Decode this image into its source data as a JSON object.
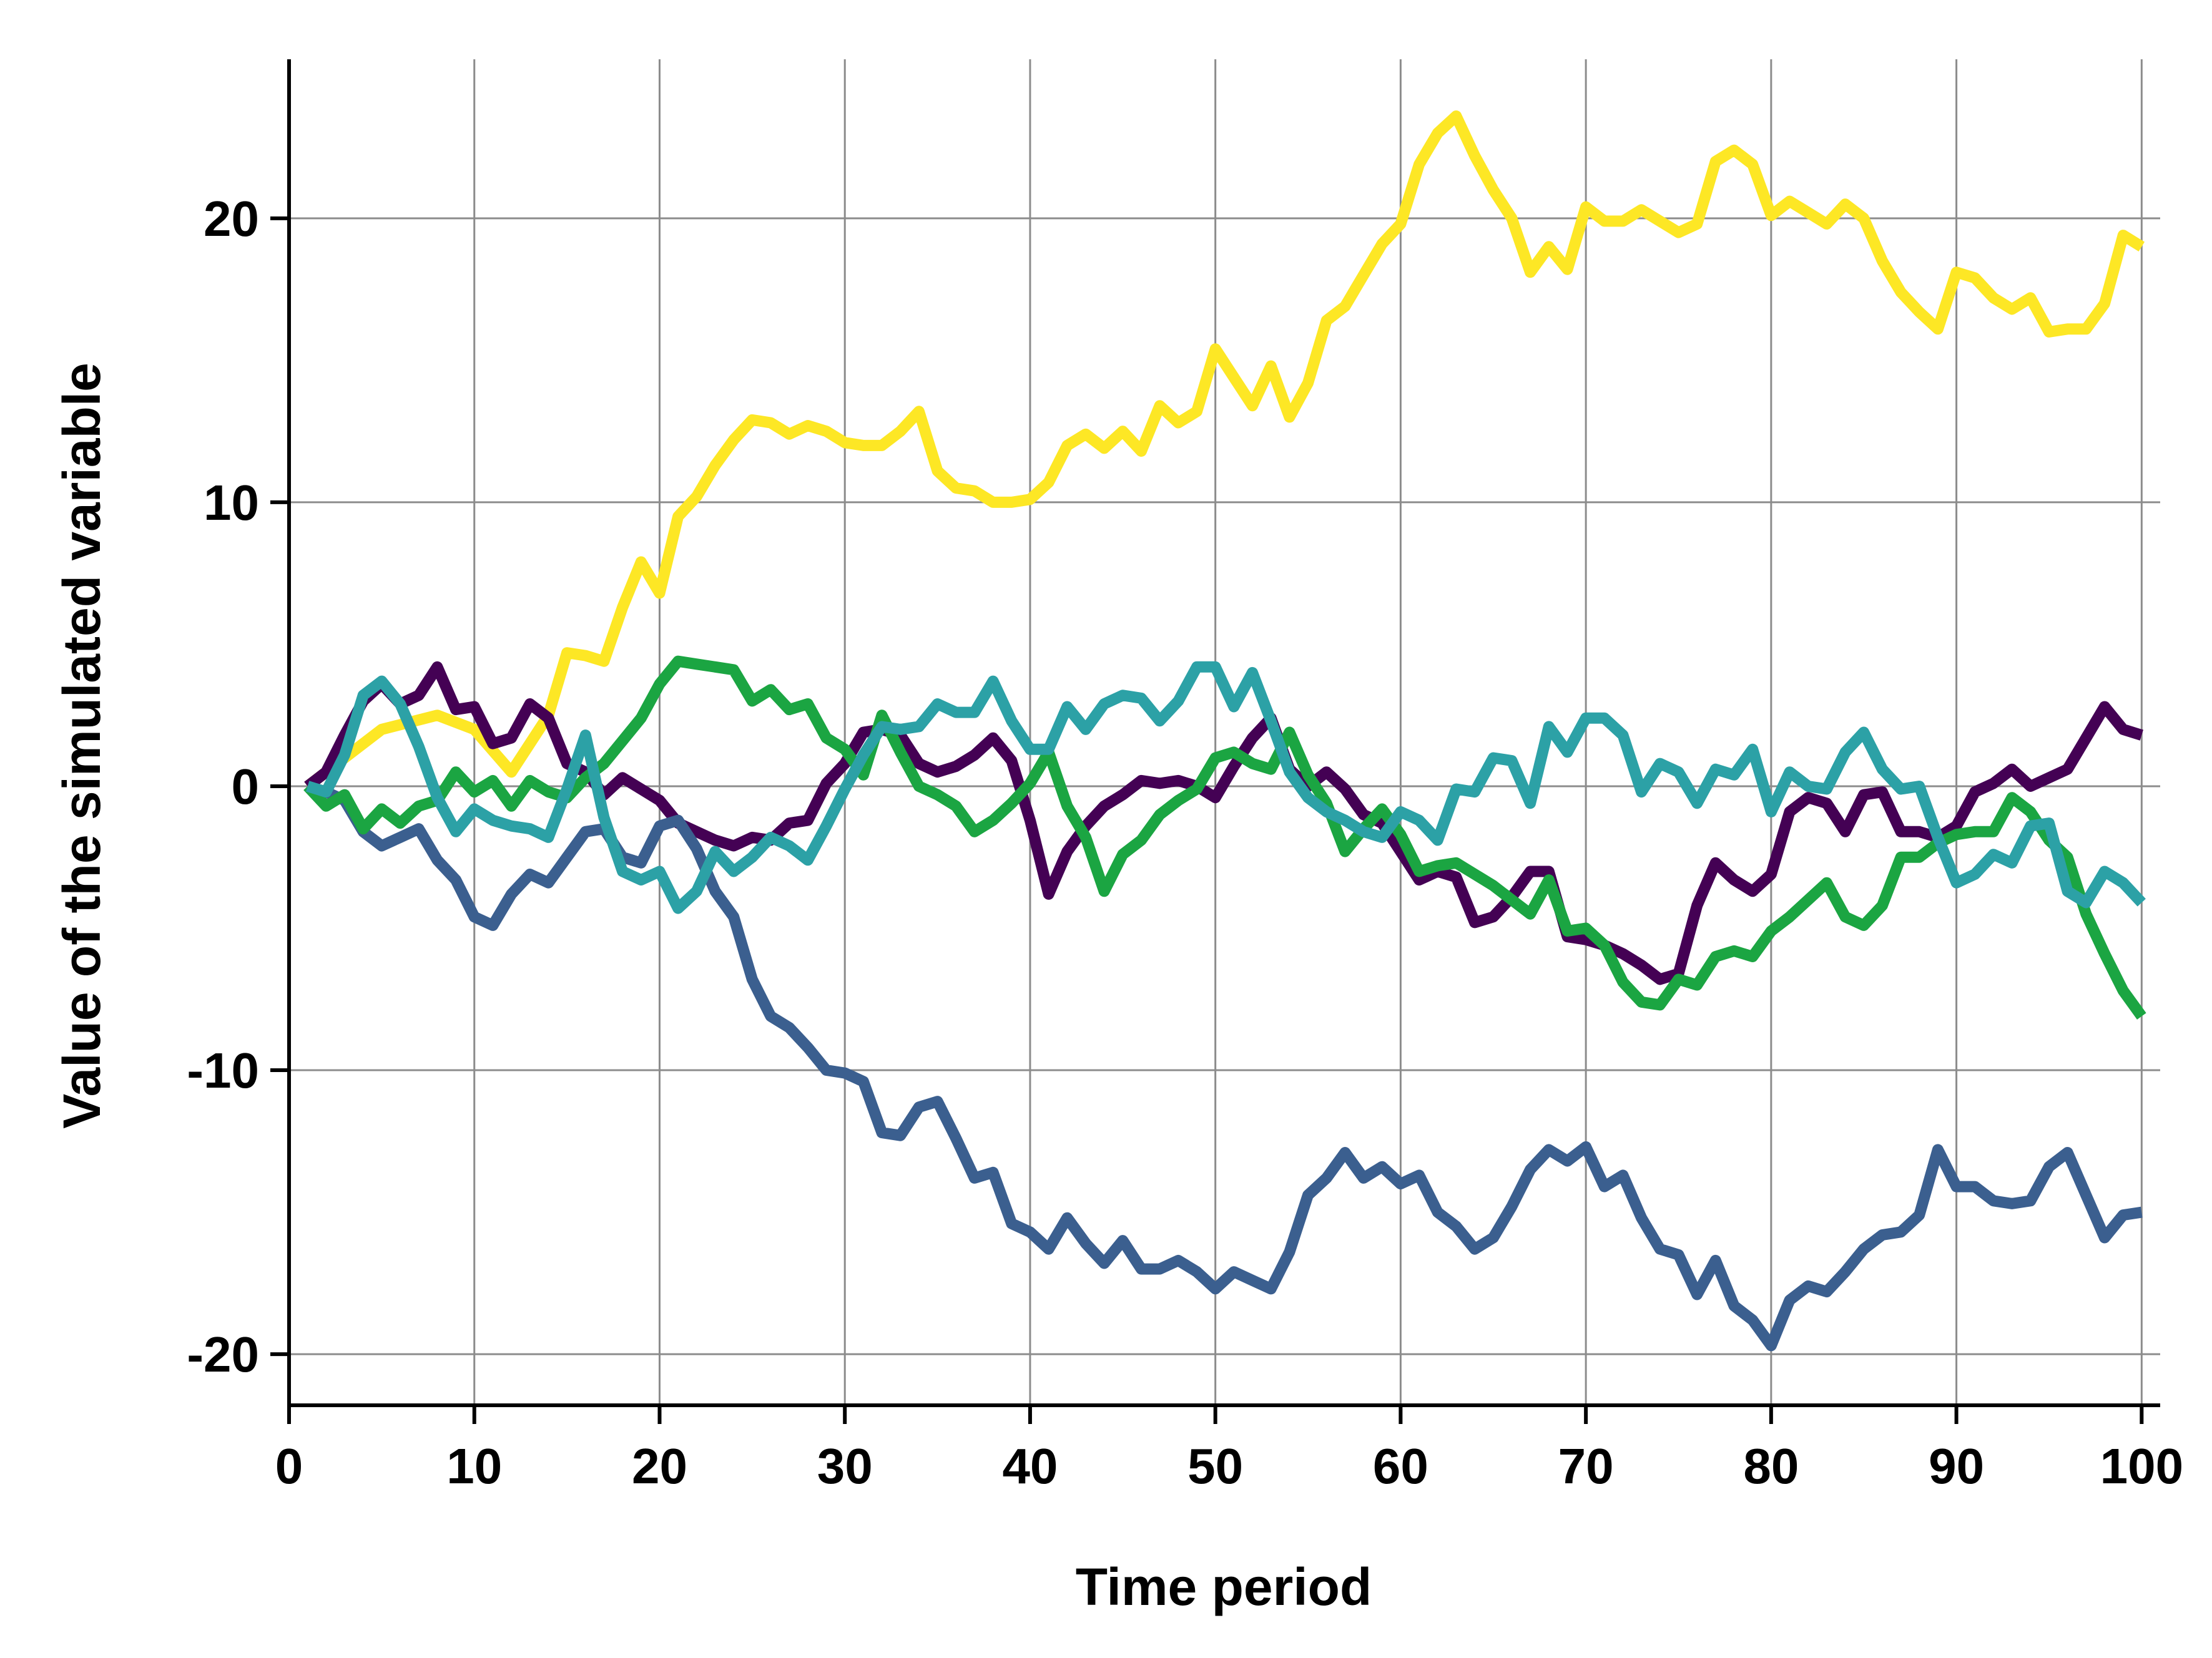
{
  "chart_data": {
    "type": "line",
    "title": "",
    "xlabel": "Time period",
    "ylabel": "Value of the simulated variable",
    "xlim": [
      0,
      101
    ],
    "ylim": [
      -21.8,
      25.6
    ],
    "xticks": [
      0,
      10,
      20,
      30,
      40,
      50,
      60,
      70,
      80,
      90,
      100
    ],
    "yticks": [
      -20,
      -10,
      0,
      10,
      20
    ],
    "grid": true,
    "legend": "none",
    "series": [
      {
        "color": "#fde725",
        "x": [
          1,
          5,
          8,
          10,
          12,
          14,
          15,
          16,
          17,
          18,
          19,
          20,
          21,
          22,
          23,
          24,
          25,
          26,
          27,
          28,
          29,
          30,
          31,
          32,
          33,
          34,
          35,
          36,
          37,
          38,
          39,
          40,
          41,
          42,
          43,
          44,
          45,
          46,
          47,
          48,
          49,
          50,
          51,
          52,
          53,
          54,
          55,
          56,
          57,
          58,
          59,
          60,
          61,
          62,
          63,
          64,
          65,
          66,
          67,
          68,
          69,
          70,
          71,
          72,
          73,
          74,
          75,
          76,
          77,
          78,
          79,
          80,
          81,
          82,
          83,
          84,
          85,
          86,
          87,
          88,
          89,
          90,
          91,
          92,
          93,
          94,
          95,
          96,
          97,
          98,
          99,
          100
        ],
        "y": [
          0,
          2,
          2.5,
          2,
          0.5,
          2.5,
          4.7,
          4.6,
          4.4,
          6.3,
          7.9,
          6.8,
          9.5,
          10.2,
          11.3,
          12.2,
          12.9,
          12.8,
          12.4,
          12.7,
          12.5,
          12.1,
          12,
          12,
          12.5,
          13.2,
          11.1,
          10.5,
          10.4,
          10,
          10,
          10.1,
          10.7,
          12,
          12.4,
          11.9,
          12.5,
          11.8,
          13.4,
          12.8,
          13.2,
          15.4,
          14.4,
          13.4,
          14.8,
          13,
          14.2,
          16.4,
          16.9,
          18,
          19.1,
          19.8,
          21.9,
          23,
          23.6,
          22.2,
          21,
          20,
          18.1,
          19,
          18.2,
          20.4,
          19.9,
          19.9,
          20.3,
          19.9,
          19.5,
          19.8,
          22,
          22.4,
          21.9,
          20.1,
          20.6,
          20.2,
          19.8,
          20.5,
          20,
          18.5,
          17.4,
          16.7,
          16.1,
          18.1,
          17.9,
          17.2,
          16.8,
          17.2,
          16,
          16.1,
          16.1,
          17,
          19.4,
          19
        ]
      },
      {
        "color": "#440154",
        "x": [
          1,
          2,
          3,
          4,
          5,
          6,
          7,
          8,
          9,
          10,
          11,
          12,
          13,
          14,
          15,
          16,
          17,
          18,
          19,
          20,
          21,
          22,
          23,
          24,
          25,
          26,
          27,
          28,
          29,
          30,
          31,
          32,
          33,
          34,
          35,
          36,
          37,
          38,
          39,
          40,
          41,
          42,
          43,
          44,
          45,
          46,
          47,
          48,
          49,
          50,
          51,
          52,
          53,
          54,
          55,
          56,
          57,
          58,
          59,
          60,
          61,
          62,
          63,
          64,
          65,
          66,
          67,
          68,
          69,
          70,
          71,
          72,
          73,
          74,
          75,
          76,
          77,
          78,
          79,
          80,
          81,
          82,
          83,
          84,
          85,
          86,
          87,
          88,
          89,
          90,
          91,
          92,
          93,
          94,
          95,
          96,
          97,
          98,
          99,
          100
        ],
        "y": [
          0,
          0.5,
          1.8,
          3,
          3.6,
          2.9,
          3.2,
          4.2,
          2.7,
          2.8,
          1.5,
          1.7,
          2.9,
          2.4,
          0.8,
          0.5,
          -0.3,
          0.3,
          -0.1,
          -0.5,
          -1.3,
          -1.6,
          -1.9,
          -2.1,
          -1.8,
          -1.9,
          -1.3,
          -1.2,
          0.1,
          0.8,
          1.9,
          2,
          1.8,
          0.8,
          0.5,
          0.7,
          1.1,
          1.7,
          0.9,
          -1.2,
          -3.8,
          -2.3,
          -1.4,
          -0.7,
          -0.3,
          0.2,
          0.1,
          0.2,
          0,
          -0.4,
          0.7,
          1.7,
          2.4,
          0.6,
          0,
          0.5,
          -0.1,
          -1,
          -1.3,
          -2.3,
          -3.3,
          -3,
          -3.2,
          -4.8,
          -4.6,
          -3.9,
          -3,
          -3,
          -5.3,
          -5.4,
          -5.6,
          -5.9,
          -6.3,
          -6.8,
          -6.6,
          -4.2,
          -2.7,
          -3.3,
          -3.7,
          -3.1,
          -0.9,
          -0.4,
          -0.6,
          -1.6,
          -0.3,
          -0.2,
          -1.6,
          -1.6,
          -1.8,
          -1.4,
          -0.2,
          0.1,
          0.6,
          0,
          0.3,
          0.6,
          1.7,
          2.8,
          2,
          1.8
        ]
      },
      {
        "color": "#3b5f8f",
        "x": [
          1,
          2,
          3,
          4,
          5,
          6,
          7,
          8,
          9,
          10,
          11,
          12,
          13,
          14,
          15,
          16,
          17,
          18,
          19,
          20,
          21,
          22,
          23,
          24,
          25,
          26,
          27,
          28,
          29,
          30,
          31,
          32,
          33,
          34,
          35,
          36,
          37,
          38,
          39,
          40,
          41,
          42,
          43,
          44,
          45,
          46,
          47,
          48,
          49,
          50,
          51,
          52,
          53,
          54,
          55,
          56,
          57,
          58,
          59,
          60,
          61,
          62,
          63,
          64,
          65,
          66,
          67,
          68,
          69,
          70,
          71,
          72,
          73,
          74,
          75,
          76,
          77,
          78,
          79,
          80,
          81,
          82,
          83,
          84,
          85,
          86,
          87,
          88,
          89,
          90,
          91,
          92,
          93,
          94,
          95,
          96,
          97,
          98,
          99,
          100
        ],
        "y": [
          0,
          -0.2,
          -0.5,
          -1.6,
          -2.1,
          -1.8,
          -1.5,
          -2.6,
          -3.3,
          -4.6,
          -4.9,
          -3.8,
          -3.1,
          -3.4,
          -2.5,
          -1.6,
          -1.5,
          -2.5,
          -2.7,
          -1.4,
          -1.2,
          -2.2,
          -3.7,
          -4.6,
          -6.8,
          -8.1,
          -8.5,
          -9.2,
          -10,
          -10.1,
          -10.4,
          -12.2,
          -12.3,
          -11.3,
          -11.1,
          -12.4,
          -13.8,
          -13.6,
          -15.4,
          -15.7,
          -16.3,
          -15.2,
          -16.1,
          -16.8,
          -16,
          -17,
          -17,
          -16.7,
          -17.1,
          -17.7,
          -17.1,
          -17.4,
          -17.7,
          -16.4,
          -14.4,
          -13.8,
          -12.9,
          -13.8,
          -13.4,
          -14,
          -13.7,
          -15,
          -15.5,
          -16.3,
          -15.9,
          -14.8,
          -13.5,
          -12.8,
          -13.2,
          -12.7,
          -14.1,
          -13.7,
          -15.2,
          -16.3,
          -16.5,
          -17.9,
          -16.7,
          -18.3,
          -18.8,
          -19.7,
          -18.1,
          -17.6,
          -17.8,
          -17.1,
          -16.3,
          -15.8,
          -15.7,
          -15.1,
          -12.8,
          -14.1,
          -14.1,
          -14.6,
          -14.7,
          -14.6,
          -13.4,
          -12.9,
          -14.4,
          -15.9,
          -15.1,
          -15
        ]
      },
      {
        "color": "#1ba542",
        "x": [
          1,
          2,
          3,
          4,
          5,
          6,
          7,
          8,
          9,
          10,
          11,
          12,
          13,
          14,
          15,
          16,
          17,
          18,
          19,
          20,
          21,
          22,
          23,
          24,
          25,
          26,
          27,
          28,
          29,
          30,
          31,
          32,
          33,
          34,
          35,
          36,
          37,
          38,
          39,
          40,
          41,
          42,
          43,
          44,
          45,
          46,
          47,
          48,
          49,
          50,
          51,
          52,
          53,
          54,
          55,
          56,
          57,
          58,
          59,
          60,
          61,
          62,
          63,
          64,
          65,
          66,
          67,
          68,
          69,
          70,
          71,
          72,
          73,
          74,
          75,
          76,
          77,
          78,
          79,
          80,
          81,
          82,
          83,
          84,
          85,
          86,
          87,
          88,
          89,
          90,
          91,
          92,
          93,
          94,
          95,
          96,
          97,
          98,
          99,
          100
        ],
        "y": [
          0,
          -0.7,
          -0.3,
          -1.5,
          -0.8,
          -1.3,
          -0.7,
          -0.5,
          0.5,
          -0.2,
          0.2,
          -0.7,
          0.2,
          -0.2,
          -0.4,
          0.3,
          0.8,
          1.6,
          2.4,
          3.6,
          4.4,
          4.3,
          4.2,
          4.1,
          3,
          3.4,
          2.7,
          2.9,
          1.7,
          1.3,
          0.4,
          2.5,
          1.2,
          0,
          -0.3,
          -0.7,
          -1.6,
          -1.2,
          -0.6,
          0.1,
          1.2,
          -0.7,
          -1.8,
          -3.7,
          -2.4,
          -1.9,
          -1,
          -0.5,
          -0.1,
          1,
          1.2,
          0.8,
          0.6,
          1.9,
          0.4,
          -0.6,
          -2.3,
          -1.5,
          -0.8,
          -1.7,
          -3,
          -2.8,
          -2.7,
          -3.1,
          -3.5,
          -4,
          -4.5,
          -3.3,
          -5.1,
          -5,
          -5.6,
          -6.9,
          -7.6,
          -7.7,
          -6.8,
          -7,
          -6,
          -5.8,
          -6,
          -5.1,
          -4.6,
          -4,
          -3.4,
          -4.6,
          -4.9,
          -4.2,
          -2.5,
          -2.5,
          -2,
          -1.7,
          -1.6,
          -1.6,
          -0.4,
          -0.9,
          -1.9,
          -2.5,
          -4.5,
          -5.9,
          -7.2,
          -8.1
        ]
      },
      {
        "color": "#2ca1a6",
        "x": [
          1,
          2,
          3,
          4,
          5,
          6,
          7,
          8,
          9,
          10,
          11,
          12,
          13,
          14,
          15,
          16,
          17,
          18,
          19,
          20,
          21,
          22,
          23,
          24,
          25,
          26,
          27,
          28,
          29,
          30,
          31,
          32,
          33,
          34,
          35,
          36,
          37,
          38,
          39,
          40,
          41,
          42,
          43,
          44,
          45,
          46,
          47,
          48,
          49,
          50,
          51,
          52,
          53,
          54,
          55,
          56,
          57,
          58,
          59,
          60,
          61,
          62,
          63,
          64,
          65,
          66,
          67,
          68,
          69,
          70,
          71,
          72,
          73,
          74,
          75,
          76,
          77,
          78,
          79,
          80,
          81,
          82,
          83,
          84,
          85,
          86,
          87,
          88,
          89,
          90,
          91,
          92,
          93,
          94,
          95,
          96,
          97,
          98,
          99,
          100
        ],
        "y": [
          0,
          -0.2,
          1.1,
          3.2,
          3.7,
          2.9,
          1.4,
          -0.4,
          -1.6,
          -0.8,
          -1.2,
          -1.4,
          -1.5,
          -1.8,
          -0.1,
          1.8,
          -1.1,
          -3,
          -3.3,
          -3,
          -4.3,
          -3.7,
          -2.3,
          -3,
          -2.5,
          -1.8,
          -2.1,
          -2.6,
          -1.4,
          -0.1,
          1.1,
          2.1,
          2,
          2.1,
          2.9,
          2.6,
          2.6,
          3.7,
          2.3,
          1.3,
          1.3,
          2.8,
          2,
          2.9,
          3.2,
          3.1,
          2.3,
          3,
          4.2,
          4.2,
          2.8,
          4,
          2.3,
          0.5,
          -0.4,
          -0.9,
          -1.2,
          -1.6,
          -1.8,
          -0.9,
          -1.2,
          -1.9,
          -0.1,
          -0.2,
          1,
          0.9,
          -0.6,
          2.1,
          1.2,
          2.4,
          2.4,
          1.8,
          -0.2,
          0.8,
          0.5,
          -0.6,
          0.6,
          0.4,
          1.3,
          -0.9,
          0.5,
          0,
          -0.1,
          1.2,
          1.9,
          0.6,
          -0.1,
          0,
          -1.8,
          -3.4,
          -3.1,
          -2.4,
          -2.7,
          -1.4,
          -1.3,
          -3.7,
          -4.1,
          -3,
          -3.4,
          -4.1
        ]
      }
    ]
  }
}
